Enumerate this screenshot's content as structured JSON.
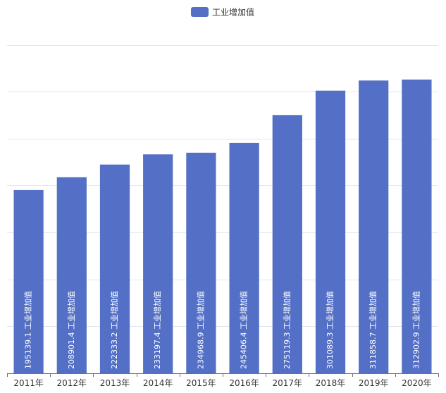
{
  "chart_data": {
    "type": "bar",
    "categories": [
      "2011年",
      "2012年",
      "2013年",
      "2014年",
      "2015年",
      "2016年",
      "2017年",
      "2018年",
      "2019年",
      "2020年"
    ],
    "series": [
      {
        "name": "工业增加值",
        "color": "#5470c6",
        "values": [
          195139.1,
          208901.4,
          222333.2,
          233197.4,
          234968.9,
          245406.4,
          275119.3,
          301089.3,
          311858.7,
          312902.9
        ],
        "labels": [
          "195139.1 工业增加值",
          "208901.4 工业增加值",
          "222333.2 工业增加值",
          "233197.4 工业增加值",
          "234968.9 工业增加值",
          "245406.4 工业增加值",
          "275119.3 工业增加值",
          "301089.3 工业增加值",
          "311858.7 工业增加值",
          "312902.9 工业增加值"
        ]
      }
    ],
    "ylim": [
      0,
      350000
    ],
    "grid": true,
    "legend": "top-center",
    "y_axis_labels_visible": false
  },
  "colors": {
    "bar": "#5470c6",
    "grid": "#e0e6f1",
    "axis": "#6e7079"
  }
}
